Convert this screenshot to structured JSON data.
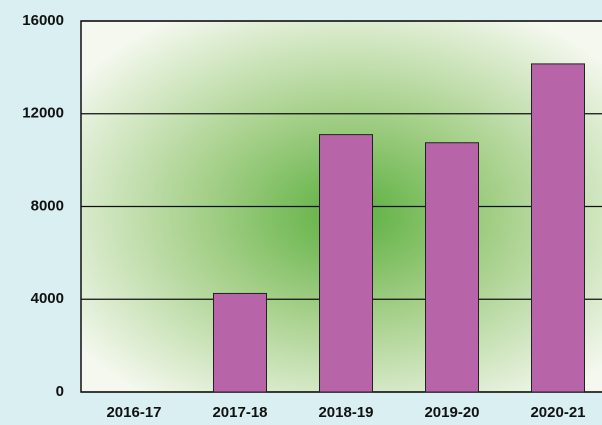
{
  "chart_data": {
    "type": "bar",
    "categories": [
      "2016-17",
      "2017-18",
      "2018-19",
      "2019-20",
      "2020-21"
    ],
    "values": [
      0,
      4250,
      11100,
      10750,
      14150
    ],
    "color": "#b864a8",
    "ylim": [
      0,
      16000
    ],
    "yticks": [
      0,
      4000,
      8000,
      12000,
      16000
    ],
    "grid": true
  }
}
